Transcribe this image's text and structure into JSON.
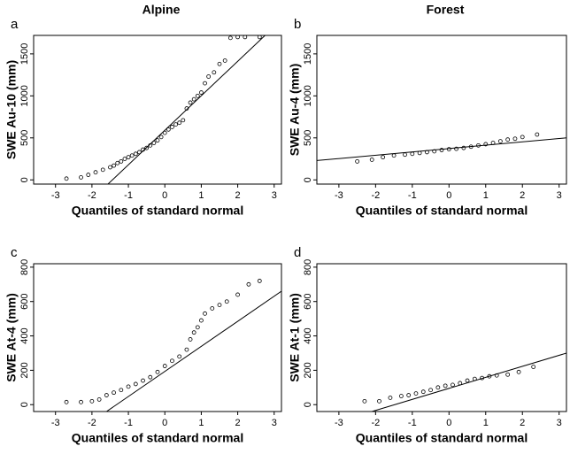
{
  "chart_data": [
    {
      "type": "scatter",
      "panel": "a",
      "title": "Alpine",
      "xlabel": "Quantiles of standard normal",
      "ylabel": "SWE Au-10 (mm)",
      "xlim": [
        -3.6,
        3.2
      ],
      "ylim": [
        -50,
        1720
      ],
      "xticks": [
        -3,
        -2,
        -1,
        0,
        1,
        2,
        3
      ],
      "yticks": [
        0,
        500,
        1000,
        1500
      ],
      "series": [
        {
          "type": "scatter",
          "color": "#000000",
          "x": [
            -2.7,
            -2.3,
            -2.1,
            -1.9,
            -1.7,
            -1.5,
            -1.4,
            -1.3,
            -1.2,
            -1.1,
            -1.0,
            -0.9,
            -0.8,
            -0.7,
            -0.6,
            -0.5,
            -0.4,
            -0.3,
            -0.2,
            -0.1,
            0,
            0.1,
            0.2,
            0.3,
            0.4,
            0.5,
            0.6,
            0.7,
            0.8,
            0.9,
            1.0,
            1.1,
            1.2,
            1.35,
            1.5,
            1.65,
            1.8,
            2.0,
            2.2,
            2.6
          ],
          "values": [
            15,
            30,
            60,
            90,
            120,
            150,
            170,
            200,
            220,
            250,
            270,
            290,
            310,
            330,
            360,
            380,
            410,
            440,
            470,
            510,
            560,
            600,
            630,
            660,
            680,
            710,
            850,
            920,
            960,
            1000,
            1040,
            1150,
            1230,
            1280,
            1380,
            1420,
            1690,
            1700,
            1700,
            1700
          ]
        },
        {
          "type": "line",
          "color": "#000000",
          "x": [
            -1.56,
            2.75
          ],
          "values": [
            -50,
            1720
          ]
        }
      ]
    },
    {
      "type": "scatter",
      "panel": "b",
      "title": "Forest",
      "xlabel": "Quantiles of standard normal",
      "ylabel": "SWE Au-4 (mm)",
      "xlim": [
        -3.6,
        3.2
      ],
      "ylim": [
        -50,
        1720
      ],
      "xticks": [
        -3,
        -2,
        -1,
        0,
        1,
        2,
        3
      ],
      "yticks": [
        0,
        500,
        1000,
        1500
      ],
      "series": [
        {
          "type": "scatter",
          "color": "#000000",
          "x": [
            -2.5,
            -2.1,
            -1.8,
            -1.5,
            -1.2,
            -1.0,
            -0.8,
            -0.6,
            -0.4,
            -0.2,
            0,
            0.2,
            0.4,
            0.6,
            0.8,
            1.0,
            1.2,
            1.4,
            1.6,
            1.8,
            2.0,
            2.4
          ],
          "values": [
            220,
            240,
            270,
            290,
            300,
            310,
            320,
            330,
            340,
            355,
            365,
            370,
            380,
            395,
            410,
            425,
            440,
            460,
            480,
            490,
            510,
            540
          ]
        },
        {
          "type": "line",
          "color": "#000000",
          "x": [
            -3.6,
            3.2
          ],
          "values": [
            230,
            500
          ]
        }
      ]
    },
    {
      "type": "scatter",
      "panel": "c",
      "xlabel": "Quantiles of standard normal",
      "ylabel": "SWE At-4 (mm)",
      "xlim": [
        -3.6,
        3.2
      ],
      "ylim": [
        -40,
        820
      ],
      "xticks": [
        -3,
        -2,
        -1,
        0,
        1,
        2,
        3
      ],
      "yticks": [
        0,
        200,
        400,
        600,
        800
      ],
      "series": [
        {
          "type": "scatter",
          "color": "#000000",
          "x": [
            -2.7,
            -2.3,
            -2.0,
            -1.8,
            -1.6,
            -1.4,
            -1.2,
            -1.0,
            -0.8,
            -0.6,
            -0.4,
            -0.2,
            0,
            0.2,
            0.4,
            0.6,
            0.7,
            0.8,
            0.9,
            1.0,
            1.1,
            1.3,
            1.5,
            1.7,
            2.0,
            2.3,
            2.6
          ],
          "values": [
            15,
            15,
            20,
            30,
            55,
            70,
            85,
            105,
            120,
            140,
            160,
            190,
            225,
            255,
            280,
            320,
            380,
            420,
            450,
            490,
            530,
            560,
            580,
            600,
            640,
            700,
            720
          ]
        },
        {
          "type": "line",
          "color": "#000000",
          "x": [
            -1.6,
            3.2
          ],
          "values": [
            -40,
            660
          ]
        }
      ]
    },
    {
      "type": "scatter",
      "panel": "d",
      "xlabel": "Quantiles of standard normal",
      "ylabel": "SWE At-1 (mm)",
      "xlim": [
        -3.6,
        3.2
      ],
      "ylim": [
        -40,
        820
      ],
      "xticks": [
        -3,
        -2,
        -1,
        0,
        1,
        2,
        3
      ],
      "yticks": [
        0,
        200,
        400,
        600,
        800
      ],
      "series": [
        {
          "type": "scatter",
          "color": "#000000",
          "x": [
            -2.3,
            -1.9,
            -1.6,
            -1.3,
            -1.1,
            -0.9,
            -0.7,
            -0.5,
            -0.3,
            -0.1,
            0.1,
            0.3,
            0.5,
            0.7,
            0.9,
            1.1,
            1.3,
            1.6,
            1.9,
            2.3
          ],
          "values": [
            20,
            20,
            40,
            50,
            55,
            65,
            75,
            85,
            100,
            110,
            115,
            125,
            140,
            150,
            155,
            165,
            170,
            175,
            190,
            220
          ]
        },
        {
          "type": "line",
          "color": "#000000",
          "x": [
            -2.1,
            3.2
          ],
          "values": [
            -40,
            300
          ]
        }
      ]
    }
  ]
}
